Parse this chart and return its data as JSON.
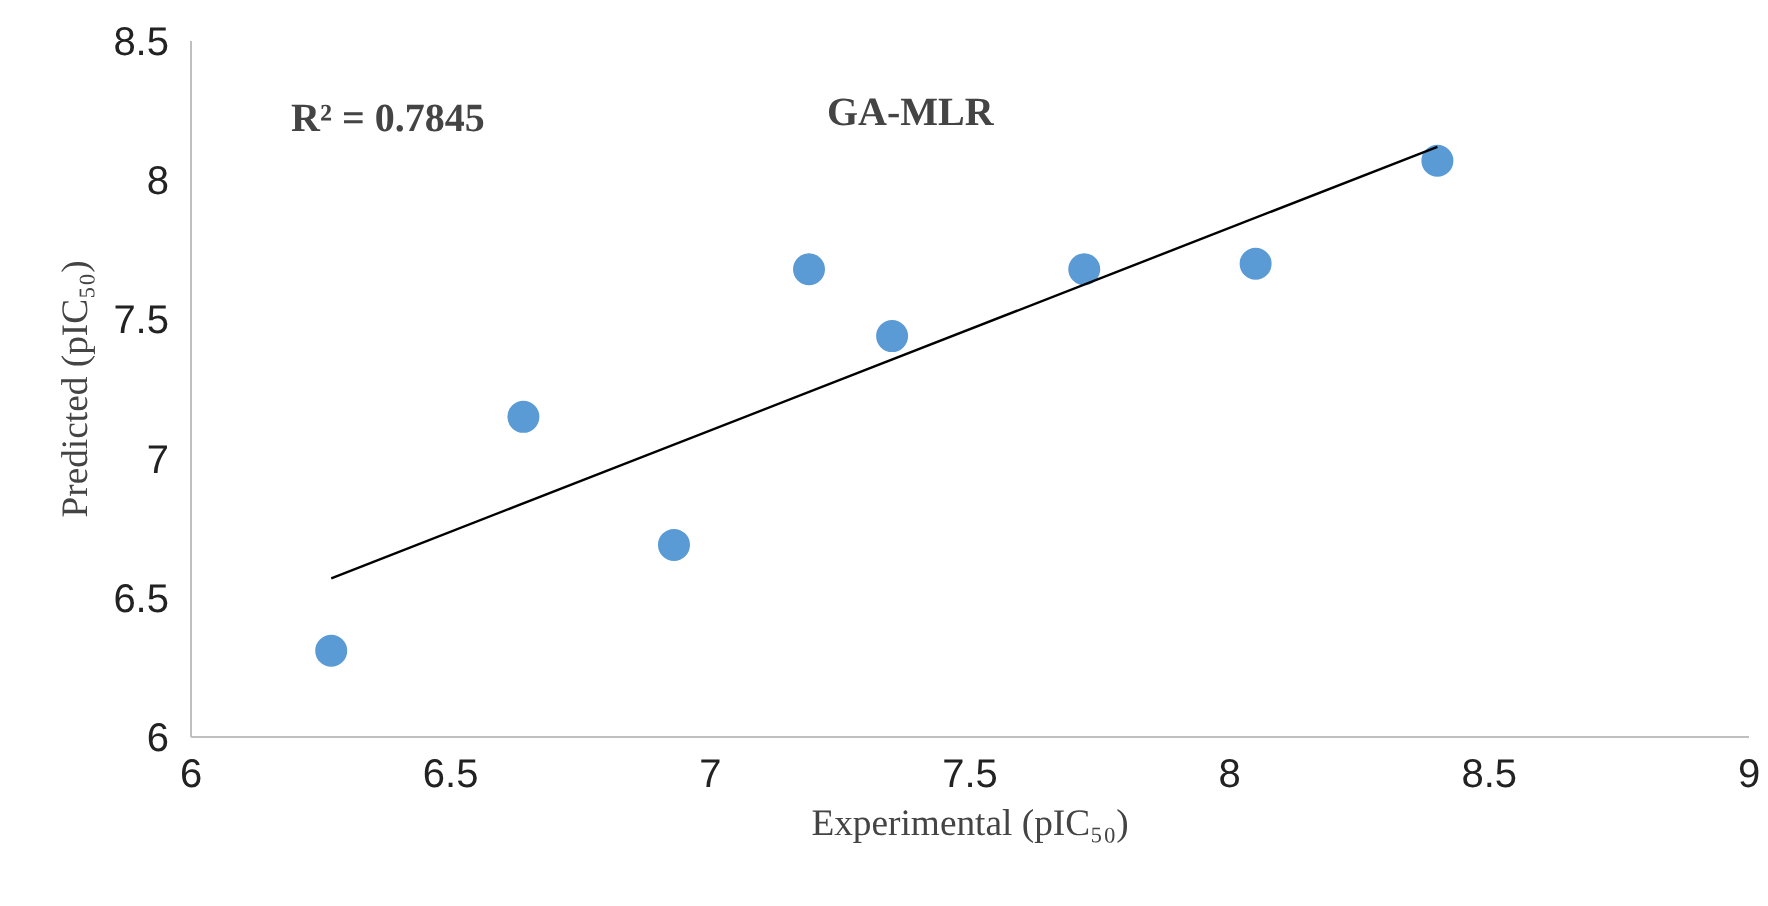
{
  "chart_data": {
    "type": "scatter",
    "title": "GA-MLR",
    "xlabel": "Experimental (pIC₅₀)",
    "ylabel": "Predicted (pIC₅₀)",
    "annotations": [
      "R² = 0.7845"
    ],
    "xlim": [
      6,
      9
    ],
    "xticks": [
      6,
      6.5,
      7,
      7.5,
      8,
      8.5,
      9
    ],
    "ylim": [
      6,
      8.5
    ],
    "yticks": [
      6,
      6.5,
      7,
      7.5,
      8,
      8.5
    ],
    "grid": false,
    "series": [
      {
        "marker": "circle",
        "color": "#5b9bd5",
        "x": [
          6.27,
          6.64,
          6.93,
          7.19,
          7.35,
          7.72,
          8.05,
          8.4
        ],
        "values": [
          6.31,
          7.15,
          6.69,
          7.68,
          7.44,
          7.68,
          7.7,
          8.07
        ]
      },
      {
        "type": "line",
        "color": "#000000",
        "line_style": "solid",
        "x": [
          6.27,
          8.4
        ],
        "values": [
          6.57,
          8.12
        ]
      }
    ]
  }
}
